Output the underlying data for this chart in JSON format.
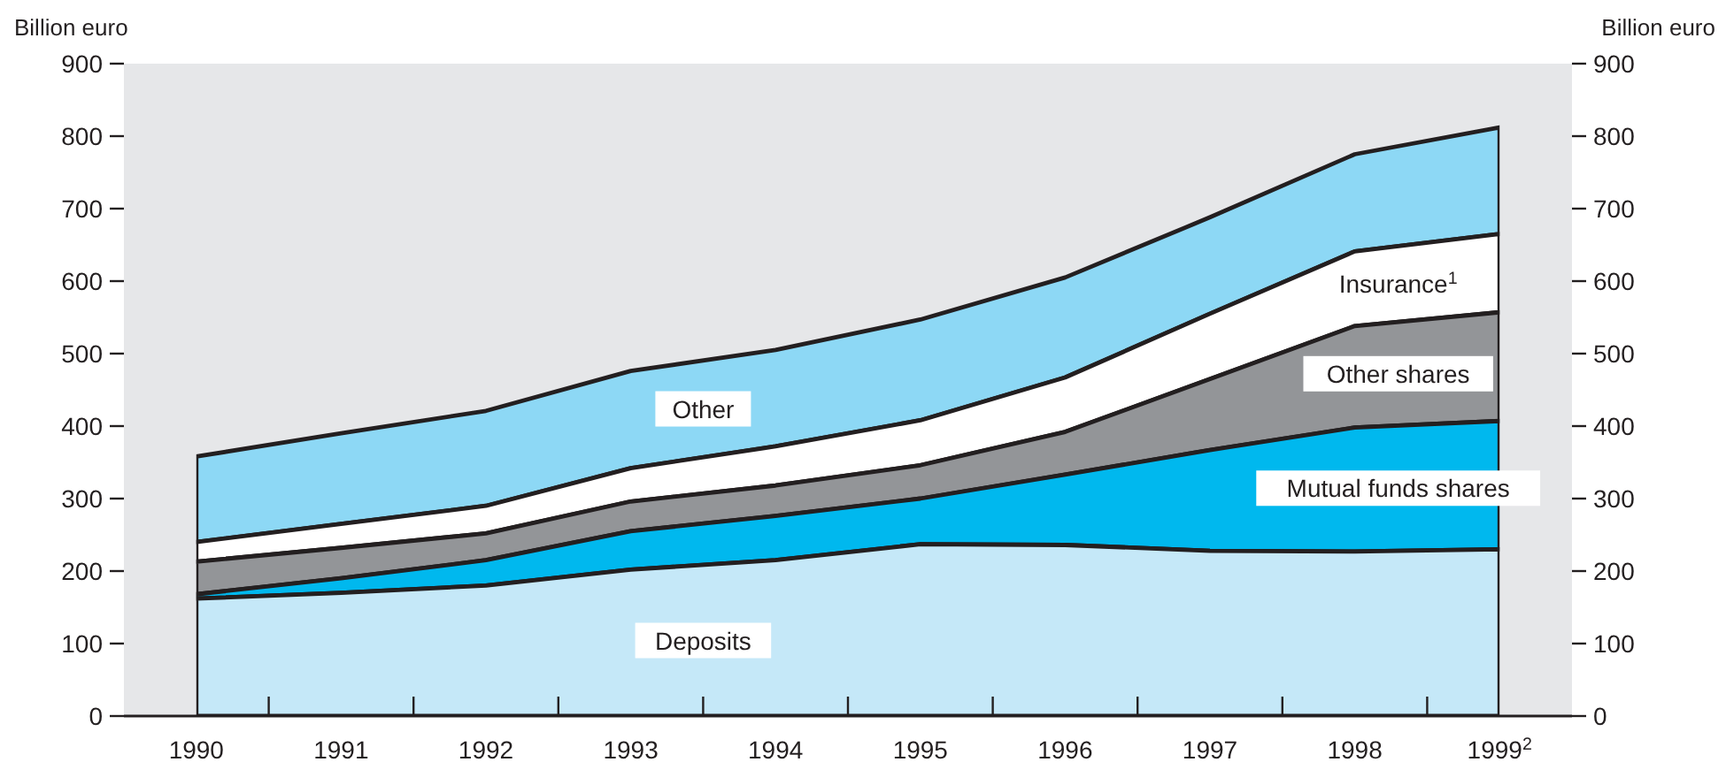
{
  "chart_data": {
    "type": "area",
    "stacked": true,
    "ylabel": "Billion euro",
    "y2label": "Billion euro",
    "categories": [
      "1990",
      "1991",
      "1992",
      "1993",
      "1994",
      "1995",
      "1996",
      "1997",
      "1998",
      "1999$^{2}$"
    ],
    "ylim": [
      0,
      900
    ],
    "yticks": [
      0,
      100,
      200,
      300,
      400,
      500,
      600,
      700,
      800,
      900
    ],
    "y2lim": [
      0,
      900
    ],
    "y2ticks": [
      0,
      100,
      200,
      300,
      400,
      500,
      600,
      700,
      800,
      900
    ],
    "grid": false,
    "series": [
      {
        "name": "Deposits",
        "color": "#c5e8f8",
        "values": [
          162,
          170,
          180,
          202,
          215,
          237,
          236,
          228,
          227,
          230
        ]
      },
      {
        "name": "Mutual funds shares",
        "color": "#00b8ee",
        "values": [
          6,
          20,
          35,
          53,
          61,
          63,
          97,
          139,
          171,
          177
        ]
      },
      {
        "name": "Other shares",
        "color": "#939598",
        "values": [
          45,
          42,
          37,
          41,
          42,
          46,
          59,
          98,
          140,
          150
        ]
      },
      {
        "name": "Insurance$^{1}$",
        "color": "#ffffff",
        "values": [
          27,
          33,
          38,
          46,
          54,
          62,
          75,
          90,
          103,
          108
        ]
      },
      {
        "name": "Other",
        "color": "#8dd8f5",
        "values": [
          118,
          125,
          131,
          134,
          133,
          139,
          138,
          133,
          134,
          147
        ]
      }
    ]
  }
}
